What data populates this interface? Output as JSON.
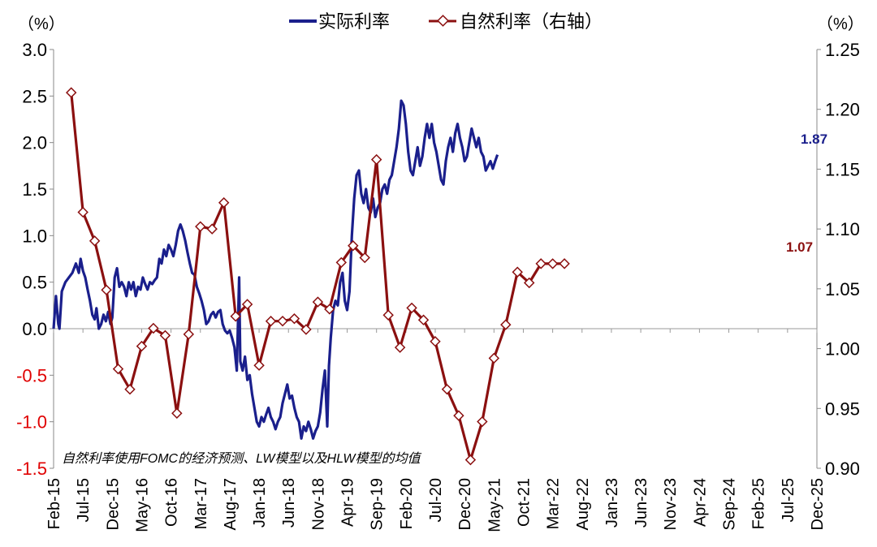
{
  "chart_data": {
    "type": "line",
    "left_unit": "（%）",
    "right_unit": "（%）",
    "note": "自然利率使用FOMC的经济预测、LW模型以及HLW模型的均值",
    "x_ticks": [
      "Feb-15",
      "Jul-15",
      "Dec-15",
      "May-16",
      "Oct-16",
      "Mar-17",
      "Aug-17",
      "Jan-18",
      "Jun-18",
      "Nov-18",
      "Apr-19",
      "Sep-19",
      "Feb-20",
      "Jul-20",
      "Dec-20",
      "May-21",
      "Oct-21",
      "Mar-22",
      "Aug-22",
      "Jan-23",
      "Jun-23",
      "Nov-23",
      "Apr-24",
      "Sep-24",
      "Feb-25",
      "Jul-25",
      "Dec-25"
    ],
    "y_left": {
      "min": -1.5,
      "max": 3.0,
      "ticks": [
        "-1.5",
        "-1.0",
        "-0.5",
        "0.0",
        "0.5",
        "1.0",
        "1.5",
        "2.0",
        "2.5",
        "3.0"
      ],
      "tick_values": [
        -1.5,
        -1.0,
        -0.5,
        0.0,
        0.5,
        1.0,
        1.5,
        2.0,
        2.5,
        3.0
      ]
    },
    "y_right": {
      "min": 0.9,
      "max": 1.25,
      "ticks": [
        "0.90",
        "0.95",
        "1.00",
        "1.05",
        "1.10",
        "1.15",
        "1.20",
        "1.25"
      ],
      "tick_values": [
        0.9,
        0.95,
        1.0,
        1.05,
        1.1,
        1.15,
        1.2,
        1.25
      ]
    },
    "series": [
      {
        "name": "实际利率",
        "axis": "left",
        "color": "#1a1f8c",
        "end_label": "1.87",
        "points": [
          [
            0,
            0.0
          ],
          [
            0.4,
            0.35
          ],
          [
            0.8,
            0.05
          ],
          [
            1.0,
            0.0
          ],
          [
            1.4,
            0.4
          ],
          [
            2,
            0.5
          ],
          [
            2.6,
            0.55
          ],
          [
            3.2,
            0.6
          ],
          [
            3.8,
            0.7
          ],
          [
            4.3,
            0.6
          ],
          [
            4.6,
            0.75
          ],
          [
            5.0,
            0.62
          ],
          [
            5.4,
            0.55
          ],
          [
            5.8,
            0.42
          ],
          [
            6.2,
            0.3
          ],
          [
            6.6,
            0.15
          ],
          [
            7.0,
            0.1
          ],
          [
            7.3,
            0.22
          ],
          [
            7.7,
            0.0
          ],
          [
            8.1,
            0.05
          ],
          [
            8.5,
            0.15
          ],
          [
            8.9,
            0.08
          ],
          [
            9.3,
            0.18
          ],
          [
            9.7,
            0.05
          ],
          [
            10.0,
            0.12
          ],
          [
            10.4,
            0.55
          ],
          [
            10.8,
            0.65
          ],
          [
            11.2,
            0.45
          ],
          [
            11.6,
            0.5
          ],
          [
            12.0,
            0.45
          ],
          [
            12.4,
            0.35
          ],
          [
            12.8,
            0.5
          ],
          [
            13.2,
            0.42
          ],
          [
            13.6,
            0.5
          ],
          [
            14.0,
            0.35
          ],
          [
            14.4,
            0.45
          ],
          [
            14.8,
            0.42
          ],
          [
            15.2,
            0.55
          ],
          [
            15.6,
            0.48
          ],
          [
            16.0,
            0.42
          ],
          [
            16.4,
            0.5
          ],
          [
            16.8,
            0.48
          ],
          [
            17.2,
            0.52
          ],
          [
            17.6,
            0.55
          ],
          [
            18.0,
            0.75
          ],
          [
            18.4,
            0.7
          ],
          [
            18.8,
            0.85
          ],
          [
            19.2,
            0.78
          ],
          [
            19.6,
            0.9
          ],
          [
            20.0,
            0.85
          ],
          [
            20.4,
            0.78
          ],
          [
            20.8,
            0.9
          ],
          [
            21.2,
            1.05
          ],
          [
            21.6,
            1.12
          ],
          [
            22.0,
            1.05
          ],
          [
            22.4,
            0.95
          ],
          [
            22.8,
            0.82
          ],
          [
            23.2,
            0.7
          ],
          [
            23.6,
            0.6
          ],
          [
            24.0,
            0.58
          ],
          [
            24.4,
            0.45
          ],
          [
            24.8,
            0.38
          ],
          [
            25.2,
            0.3
          ],
          [
            25.6,
            0.2
          ],
          [
            26.0,
            0.05
          ],
          [
            26.4,
            0.08
          ],
          [
            26.8,
            0.15
          ],
          [
            27.2,
            0.18
          ],
          [
            27.6,
            0.12
          ],
          [
            28.0,
            0.18
          ],
          [
            28.4,
            0.2
          ],
          [
            28.8,
            0.05
          ],
          [
            29.2,
            -0.02
          ],
          [
            29.6,
            -0.05
          ],
          [
            30.0,
            -0.02
          ],
          [
            30.4,
            -0.1
          ],
          [
            30.8,
            -0.2
          ],
          [
            31.2,
            -0.45
          ],
          [
            31.6,
            0.55
          ],
          [
            31.8,
            -0.35
          ],
          [
            32.2,
            -0.45
          ],
          [
            32.6,
            -0.3
          ],
          [
            33.0,
            -0.55
          ],
          [
            33.4,
            -0.5
          ],
          [
            33.8,
            -0.7
          ],
          [
            34.2,
            -0.85
          ],
          [
            34.6,
            -1.0
          ],
          [
            35.0,
            -1.05
          ],
          [
            35.4,
            -0.95
          ],
          [
            35.8,
            -1.0
          ],
          [
            36.2,
            -0.92
          ],
          [
            36.6,
            -0.85
          ],
          [
            37.0,
            -0.95
          ],
          [
            37.4,
            -1.0
          ],
          [
            37.8,
            -1.08
          ],
          [
            38.2,
            -1.0
          ],
          [
            38.6,
            -0.95
          ],
          [
            39.0,
            -0.8
          ],
          [
            39.4,
            -0.7
          ],
          [
            39.8,
            -0.6
          ],
          [
            40.2,
            -0.75
          ],
          [
            40.6,
            -0.72
          ],
          [
            41.0,
            -0.85
          ],
          [
            41.4,
            -0.95
          ],
          [
            41.8,
            -1.0
          ],
          [
            42.2,
            -1.18
          ],
          [
            42.6,
            -1.05
          ],
          [
            43.0,
            -1.1
          ],
          [
            43.4,
            -1.0
          ],
          [
            43.8,
            -1.08
          ],
          [
            44.2,
            -1.18
          ],
          [
            44.6,
            -1.1
          ],
          [
            45.0,
            -1.05
          ],
          [
            45.4,
            -0.9
          ],
          [
            45.8,
            -0.65
          ],
          [
            46.2,
            -0.45
          ],
          [
            46.6,
            -1.05
          ],
          [
            46.9,
            -0.4
          ],
          [
            47.2,
            -0.1
          ],
          [
            47.6,
            0.2
          ],
          [
            48.0,
            0.3
          ],
          [
            48.4,
            0.25
          ],
          [
            48.8,
            0.5
          ],
          [
            49.2,
            0.6
          ],
          [
            49.6,
            0.3
          ],
          [
            50.0,
            0.2
          ],
          [
            50.4,
            0.4
          ],
          [
            50.8,
            1.0
          ],
          [
            51.2,
            1.4
          ],
          [
            51.6,
            1.65
          ],
          [
            52.0,
            1.7
          ],
          [
            52.4,
            1.45
          ],
          [
            52.8,
            1.35
          ],
          [
            53.2,
            1.5
          ],
          [
            53.6,
            1.3
          ],
          [
            54.0,
            1.25
          ],
          [
            54.4,
            1.4
          ],
          [
            54.8,
            1.2
          ],
          [
            55.2,
            1.3
          ],
          [
            55.6,
            1.35
          ],
          [
            56.0,
            1.5
          ],
          [
            56.4,
            1.55
          ],
          [
            56.8,
            1.45
          ],
          [
            57.2,
            1.6
          ],
          [
            57.6,
            1.65
          ],
          [
            58.0,
            1.8
          ],
          [
            58.4,
            1.95
          ],
          [
            58.8,
            2.15
          ],
          [
            59.2,
            2.45
          ],
          [
            59.6,
            2.4
          ],
          [
            60.0,
            2.2
          ],
          [
            60.4,
            1.9
          ],
          [
            60.8,
            1.7
          ],
          [
            61.2,
            1.65
          ],
          [
            61.6,
            1.8
          ],
          [
            62.0,
            1.95
          ],
          [
            62.4,
            1.75
          ],
          [
            62.8,
            1.85
          ],
          [
            63.2,
            2.05
          ],
          [
            63.6,
            2.2
          ],
          [
            64.0,
            2.05
          ],
          [
            64.4,
            2.2
          ],
          [
            64.8,
            2.0
          ],
          [
            65.2,
            1.9
          ],
          [
            65.6,
            1.75
          ],
          [
            66.0,
            1.6
          ],
          [
            66.4,
            1.55
          ],
          [
            66.8,
            1.8
          ],
          [
            67.2,
            1.95
          ],
          [
            67.6,
            2.05
          ],
          [
            68.0,
            1.9
          ],
          [
            68.4,
            2.1
          ],
          [
            68.8,
            2.2
          ],
          [
            69.2,
            2.05
          ],
          [
            69.6,
            1.95
          ],
          [
            70.0,
            1.8
          ],
          [
            70.4,
            1.85
          ],
          [
            70.8,
            2.0
          ],
          [
            71.2,
            2.15
          ],
          [
            71.6,
            2.05
          ],
          [
            72.0,
            1.95
          ],
          [
            72.4,
            2.05
          ],
          [
            72.8,
            1.9
          ],
          [
            73.2,
            1.85
          ],
          [
            73.6,
            1.7
          ],
          [
            74.0,
            1.75
          ],
          [
            74.4,
            1.8
          ],
          [
            74.8,
            1.72
          ],
          [
            75.2,
            1.8
          ],
          [
            75.6,
            1.87
          ]
        ]
      },
      {
        "name": "自然利率（右轴）",
        "axis": "right",
        "color": "#8b1010",
        "end_label": "1.07",
        "points": [
          [
            3,
            1.214
          ],
          [
            5,
            1.114
          ],
          [
            7,
            1.09
          ],
          [
            9,
            1.049
          ],
          [
            11,
            0.983
          ],
          [
            13,
            0.966
          ],
          [
            15,
            1.002
          ],
          [
            17,
            1.017
          ],
          [
            19,
            1.011
          ],
          [
            21,
            0.946
          ],
          [
            23,
            1.012
          ],
          [
            25,
            1.102
          ],
          [
            27,
            1.1
          ],
          [
            29,
            1.122
          ],
          [
            31,
            1.027
          ],
          [
            33,
            1.037
          ],
          [
            35,
            0.986
          ],
          [
            37,
            1.023
          ],
          [
            39,
            1.023
          ],
          [
            41,
            1.025
          ],
          [
            43,
            1.016
          ],
          [
            45,
            1.039
          ],
          [
            47,
            1.033
          ],
          [
            49,
            1.072
          ],
          [
            51,
            1.086
          ],
          [
            53,
            1.076
          ],
          [
            55,
            1.158
          ],
          [
            57,
            1.028
          ],
          [
            59,
            1.001
          ],
          [
            61,
            1.034
          ],
          [
            63,
            1.024
          ],
          [
            65,
            1.006
          ],
          [
            67,
            0.966
          ],
          [
            69,
            0.944
          ],
          [
            71,
            0.907
          ],
          [
            73,
            0.939
          ],
          [
            75,
            0.992
          ],
          [
            77,
            1.02
          ],
          [
            79,
            1.064
          ],
          [
            81,
            1.055
          ],
          [
            83,
            1.071
          ],
          [
            85,
            1.071
          ],
          [
            87,
            1.071
          ]
        ]
      }
    ]
  }
}
